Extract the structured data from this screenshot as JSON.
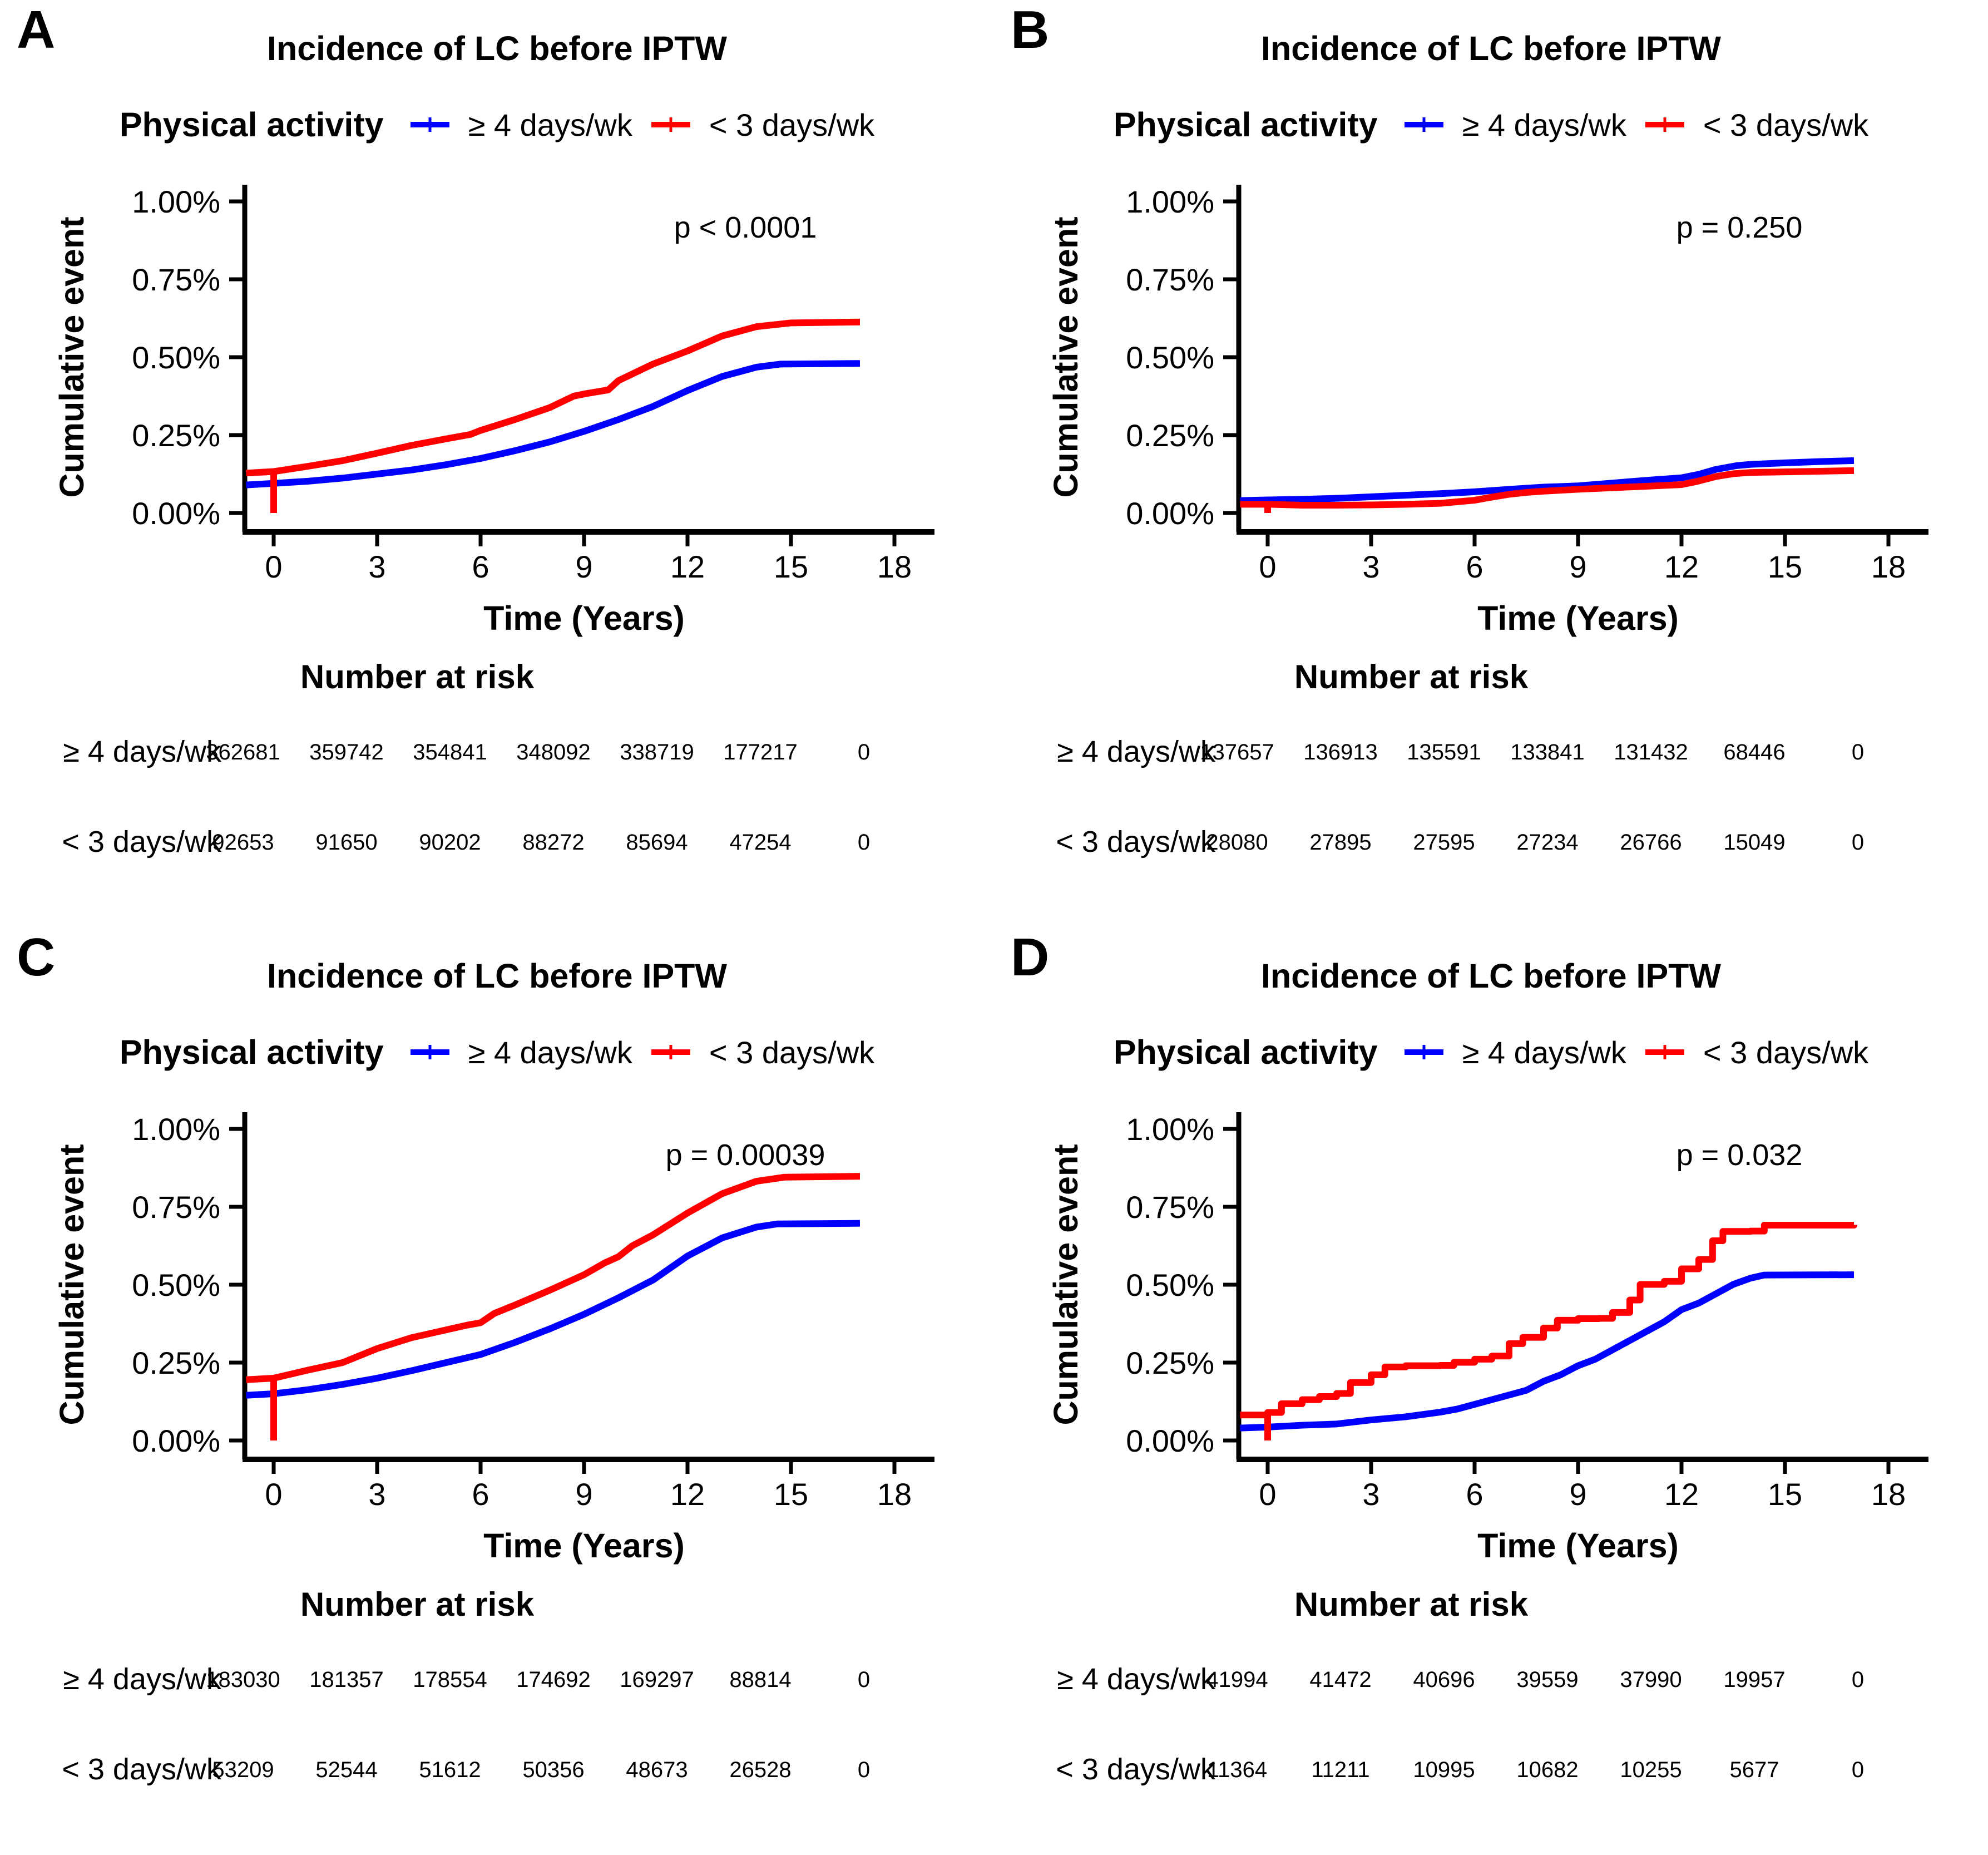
{
  "colors": {
    "blue": "#0000FF",
    "red": "#FF0000",
    "axis": "#000000"
  },
  "chart_data": [
    {
      "letter": "A",
      "type": "line",
      "title": "Incidence of LC before IPTW",
      "legend_title": "Physical activity",
      "p_annotation": "p < 0.0001",
      "xlabel": "Time (Years)",
      "ylabel": "Cumulative event",
      "x_ticks": [
        0,
        3,
        6,
        9,
        12,
        15,
        18
      ],
      "y_tick_values": [
        0,
        0.25,
        0.5,
        0.75,
        1.0
      ],
      "y_tick_labels": [
        "0.00%",
        "0.25%",
        "0.50%",
        "0.75%",
        "1.00%"
      ],
      "ylim_pct": [
        0,
        1.0
      ],
      "series": [
        {
          "name": "≥ 4 days/wk",
          "color_key": "blue",
          "points_pct": [
            [
              -0.8,
              0.09
            ],
            [
              0,
              0.095
            ],
            [
              1,
              0.102
            ],
            [
              2,
              0.112
            ],
            [
              3,
              0.125
            ],
            [
              4,
              0.138
            ],
            [
              5,
              0.155
            ],
            [
              6,
              0.175
            ],
            [
              7,
              0.2
            ],
            [
              8,
              0.228
            ],
            [
              9,
              0.262
            ],
            [
              10,
              0.3
            ],
            [
              11,
              0.342
            ],
            [
              12,
              0.393
            ],
            [
              13,
              0.438
            ],
            [
              14,
              0.468
            ],
            [
              14.7,
              0.478
            ],
            [
              17,
              0.48
            ]
          ]
        },
        {
          "name": "< 3 days/wk",
          "color_key": "red",
          "drop_to_zero_at": 0,
          "points_pct": [
            [
              -0.8,
              0.128
            ],
            [
              0,
              0.133
            ],
            [
              1,
              0.15
            ],
            [
              2,
              0.168
            ],
            [
              3,
              0.192
            ],
            [
              4,
              0.217
            ],
            [
              5,
              0.238
            ],
            [
              5.7,
              0.252
            ],
            [
              6,
              0.265
            ],
            [
              7,
              0.3
            ],
            [
              8,
              0.338
            ],
            [
              8.7,
              0.375
            ],
            [
              9,
              0.382
            ],
            [
              9.7,
              0.395
            ],
            [
              10,
              0.425
            ],
            [
              11,
              0.478
            ],
            [
              12,
              0.52
            ],
            [
              13,
              0.568
            ],
            [
              14,
              0.598
            ],
            [
              15,
              0.61
            ],
            [
              17,
              0.613
            ]
          ]
        }
      ],
      "risk_header": "Number at risk",
      "number_at_risk": {
        "times": [
          0,
          3,
          6,
          9,
          12,
          15,
          18
        ],
        "rows": [
          {
            "name": "≥ 4 days/wk",
            "color_key": "blue",
            "values": [
              362681,
              359742,
              354841,
              348092,
              338719,
              177217,
              0
            ]
          },
          {
            "name": "< 3 days/wk",
            "color_key": "red",
            "values": [
              92653,
              91650,
              90202,
              88272,
              85694,
              47254,
              0
            ]
          }
        ]
      }
    },
    {
      "letter": "B",
      "type": "line",
      "title": "Incidence of LC before IPTW",
      "legend_title": "Physical activity",
      "p_annotation": "p = 0.250",
      "xlabel": "Time (Years)",
      "ylabel": "Cumulative event",
      "x_ticks": [
        0,
        3,
        6,
        9,
        12,
        15,
        18
      ],
      "y_tick_values": [
        0,
        0.25,
        0.5,
        0.75,
        1.0
      ],
      "y_tick_labels": [
        "0.00%",
        "0.25%",
        "0.50%",
        "0.75%",
        "1.00%"
      ],
      "ylim_pct": [
        0,
        1.0
      ],
      "series": [
        {
          "name": "≥ 4 days/wk",
          "color_key": "blue",
          "points_pct": [
            [
              -0.8,
              0.04
            ],
            [
              0,
              0.042
            ],
            [
              1,
              0.044
            ],
            [
              2,
              0.047
            ],
            [
              3,
              0.052
            ],
            [
              4,
              0.057
            ],
            [
              5,
              0.062
            ],
            [
              6,
              0.068
            ],
            [
              7,
              0.076
            ],
            [
              8,
              0.083
            ],
            [
              9,
              0.087
            ],
            [
              10,
              0.096
            ],
            [
              11,
              0.105
            ],
            [
              12,
              0.113
            ],
            [
              12.5,
              0.124
            ],
            [
              13,
              0.14
            ],
            [
              13.6,
              0.152
            ],
            [
              14,
              0.156
            ],
            [
              15,
              0.161
            ],
            [
              16,
              0.165
            ],
            [
              17,
              0.168
            ]
          ]
        },
        {
          "name": "< 3 days/wk",
          "color_key": "red",
          "drop_to_zero_at": 0,
          "points_pct": [
            [
              -0.8,
              0.028
            ],
            [
              0,
              0.028
            ],
            [
              1,
              0.025
            ],
            [
              2,
              0.025
            ],
            [
              3,
              0.026
            ],
            [
              4,
              0.028
            ],
            [
              5,
              0.031
            ],
            [
              5.5,
              0.036
            ],
            [
              6,
              0.041
            ],
            [
              6.5,
              0.051
            ],
            [
              7,
              0.06
            ],
            [
              7.5,
              0.066
            ],
            [
              8,
              0.07
            ],
            [
              9,
              0.076
            ],
            [
              10,
              0.081
            ],
            [
              11,
              0.086
            ],
            [
              12,
              0.091
            ],
            [
              12.4,
              0.1
            ],
            [
              13,
              0.117
            ],
            [
              13.5,
              0.126
            ],
            [
              14,
              0.13
            ],
            [
              15,
              0.132
            ],
            [
              16,
              0.134
            ],
            [
              17,
              0.136
            ]
          ]
        }
      ],
      "risk_header": "Number at risk",
      "number_at_risk": {
        "times": [
          0,
          3,
          6,
          9,
          12,
          15,
          18
        ],
        "rows": [
          {
            "name": "≥ 4 days/wk",
            "color_key": "blue",
            "values": [
              137657,
              136913,
              135591,
              133841,
              131432,
              68446,
              0
            ]
          },
          {
            "name": "< 3 days/wk",
            "color_key": "red",
            "values": [
              28080,
              27895,
              27595,
              27234,
              26766,
              15049,
              0
            ]
          }
        ]
      }
    },
    {
      "letter": "C",
      "type": "line",
      "title": "Incidence of LC before IPTW",
      "legend_title": "Physical activity",
      "p_annotation": "p = 0.00039",
      "xlabel": "Time (Years)",
      "ylabel": "Cumulative event",
      "x_ticks": [
        0,
        3,
        6,
        9,
        12,
        15,
        18
      ],
      "y_tick_values": [
        0,
        0.25,
        0.5,
        0.75,
        1.0
      ],
      "y_tick_labels": [
        "0.00%",
        "0.25%",
        "0.50%",
        "0.75%",
        "1.00%"
      ],
      "ylim_pct": [
        0,
        1.0
      ],
      "series": [
        {
          "name": "≥ 4 days/wk",
          "color_key": "blue",
          "points_pct": [
            [
              -0.8,
              0.145
            ],
            [
              0,
              0.15
            ],
            [
              1,
              0.163
            ],
            [
              2,
              0.18
            ],
            [
              3,
              0.2
            ],
            [
              4,
              0.224
            ],
            [
              5,
              0.25
            ],
            [
              6,
              0.276
            ],
            [
              7,
              0.315
            ],
            [
              8,
              0.358
            ],
            [
              9,
              0.405
            ],
            [
              10,
              0.458
            ],
            [
              11,
              0.515
            ],
            [
              12,
              0.592
            ],
            [
              13,
              0.65
            ],
            [
              14,
              0.685
            ],
            [
              14.6,
              0.695
            ],
            [
              17,
              0.697
            ]
          ]
        },
        {
          "name": "< 3 days/wk",
          "color_key": "red",
          "drop_to_zero_at": 0,
          "points_pct": [
            [
              -0.8,
              0.195
            ],
            [
              0,
              0.2
            ],
            [
              1,
              0.226
            ],
            [
              2,
              0.25
            ],
            [
              3,
              0.295
            ],
            [
              4,
              0.33
            ],
            [
              5,
              0.355
            ],
            [
              5.6,
              0.37
            ],
            [
              6,
              0.378
            ],
            [
              6.4,
              0.408
            ],
            [
              7,
              0.435
            ],
            [
              8,
              0.482
            ],
            [
              9,
              0.532
            ],
            [
              9.6,
              0.57
            ],
            [
              10,
              0.59
            ],
            [
              10.4,
              0.625
            ],
            [
              11,
              0.66
            ],
            [
              12,
              0.73
            ],
            [
              13,
              0.792
            ],
            [
              14,
              0.832
            ],
            [
              14.8,
              0.845
            ],
            [
              17,
              0.848
            ]
          ]
        }
      ],
      "risk_header": "Number at risk",
      "number_at_risk": {
        "times": [
          0,
          3,
          6,
          9,
          12,
          15,
          18
        ],
        "rows": [
          {
            "name": "≥ 4 days/wk",
            "color_key": "blue",
            "values": [
              183030,
              181357,
              178554,
              174692,
              169297,
              88814,
              0
            ]
          },
          {
            "name": "< 3 days/wk",
            "color_key": "red",
            "values": [
              53209,
              52544,
              51612,
              50356,
              48673,
              26528,
              0
            ]
          }
        ]
      }
    },
    {
      "letter": "D",
      "type": "line",
      "title": "Incidence of LC before IPTW",
      "legend_title": "Physical activity",
      "p_annotation": "p = 0.032",
      "xlabel": "Time (Years)",
      "ylabel": "Cumulative event",
      "x_ticks": [
        0,
        3,
        6,
        9,
        12,
        15,
        18
      ],
      "y_tick_values": [
        0,
        0.25,
        0.5,
        0.75,
        1.0
      ],
      "y_tick_labels": [
        "0.00%",
        "0.25%",
        "0.50%",
        "0.75%",
        "1.00%"
      ],
      "ylim_pct": [
        0,
        1.0
      ],
      "series": [
        {
          "name": "≥ 4 days/wk",
          "color_key": "blue",
          "points_pct": [
            [
              -0.8,
              0.04
            ],
            [
              0,
              0.043
            ],
            [
              1,
              0.049
            ],
            [
              2,
              0.053
            ],
            [
              3,
              0.066
            ],
            [
              4,
              0.076
            ],
            [
              5,
              0.091
            ],
            [
              5.5,
              0.101
            ],
            [
              6,
              0.116
            ],
            [
              6.5,
              0.131
            ],
            [
              7,
              0.146
            ],
            [
              7.5,
              0.161
            ],
            [
              8,
              0.19
            ],
            [
              8.5,
              0.211
            ],
            [
              9,
              0.24
            ],
            [
              9.5,
              0.261
            ],
            [
              10,
              0.291
            ],
            [
              10.5,
              0.321
            ],
            [
              11,
              0.351
            ],
            [
              11.5,
              0.381
            ],
            [
              12,
              0.42
            ],
            [
              12.5,
              0.441
            ],
            [
              13,
              0.471
            ],
            [
              13.5,
              0.501
            ],
            [
              14,
              0.521
            ],
            [
              14.4,
              0.531
            ],
            [
              17,
              0.532
            ]
          ]
        },
        {
          "name": "< 3 days/wk",
          "color_key": "red",
          "drop_to_zero_at": 0,
          "step": true,
          "points_pct": [
            [
              -0.8,
              0.082
            ],
            [
              0,
              0.09
            ],
            [
              0.4,
              0.118
            ],
            [
              1,
              0.131
            ],
            [
              1.5,
              0.141
            ],
            [
              2,
              0.151
            ],
            [
              2.4,
              0.186
            ],
            [
              3,
              0.211
            ],
            [
              3.4,
              0.236
            ],
            [
              4,
              0.24
            ],
            [
              5,
              0.241
            ],
            [
              5.4,
              0.251
            ],
            [
              6,
              0.261
            ],
            [
              6.5,
              0.271
            ],
            [
              7,
              0.311
            ],
            [
              7.4,
              0.331
            ],
            [
              8,
              0.361
            ],
            [
              8.4,
              0.386
            ],
            [
              9,
              0.391
            ],
            [
              9.6,
              0.392
            ],
            [
              10,
              0.411
            ],
            [
              10.5,
              0.451
            ],
            [
              10.8,
              0.501
            ],
            [
              11.5,
              0.511
            ],
            [
              12,
              0.551
            ],
            [
              12.5,
              0.581
            ],
            [
              12.9,
              0.641
            ],
            [
              13.2,
              0.671
            ],
            [
              14,
              0.672
            ],
            [
              14.4,
              0.691
            ],
            [
              17,
              0.692
            ]
          ]
        }
      ],
      "risk_header": "Number at risk",
      "number_at_risk": {
        "times": [
          0,
          3,
          6,
          9,
          12,
          15,
          18
        ],
        "rows": [
          {
            "name": "≥ 4 days/wk",
            "color_key": "blue",
            "values": [
              41994,
              41472,
              40696,
              39559,
              37990,
              19957,
              0
            ]
          },
          {
            "name": "< 3 days/wk",
            "color_key": "red",
            "values": [
              11364,
              11211,
              10995,
              10682,
              10255,
              5677,
              0
            ]
          }
        ]
      }
    }
  ]
}
